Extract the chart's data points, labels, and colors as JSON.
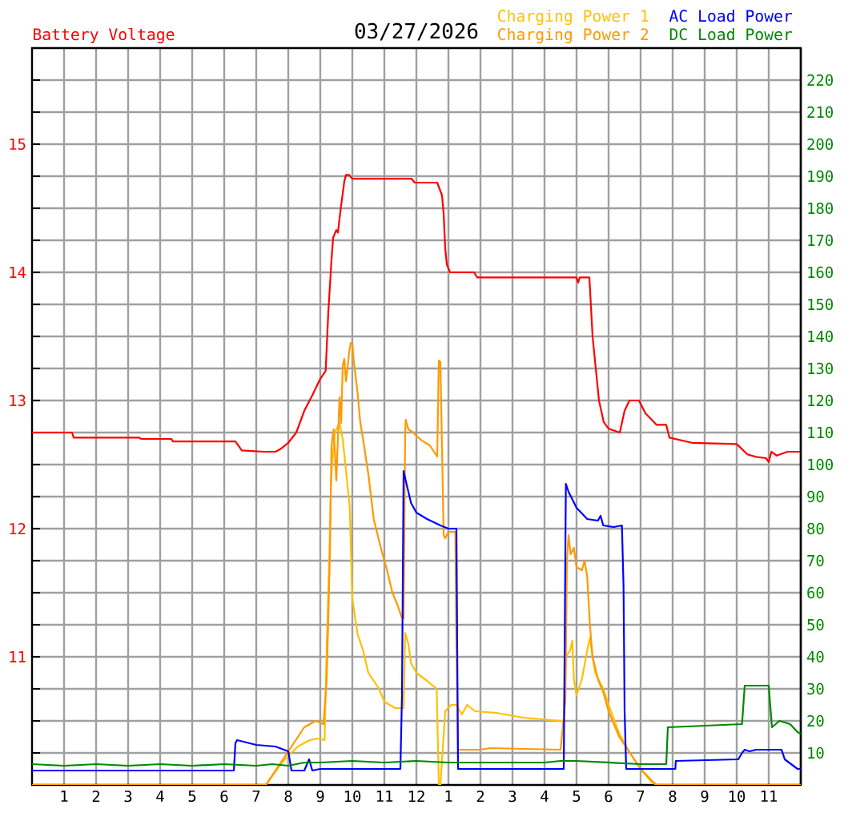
{
  "chart_data": {
    "type": "line",
    "title": "03/27/2026",
    "xlim": [
      "2026-03-27T00:00",
      "2026-03-28T00:00"
    ],
    "xticks": [
      {
        "value": "2026-03-27T01:00",
        "label": "1"
      },
      {
        "value": "2026-03-27T02:00",
        "label": "2"
      },
      {
        "value": "2026-03-27T03:00",
        "label": "3"
      },
      {
        "value": "2026-03-27T04:00",
        "label": "4"
      },
      {
        "value": "2026-03-27T05:00",
        "label": "5"
      },
      {
        "value": "2026-03-27T06:00",
        "label": "6"
      },
      {
        "value": "2026-03-27T07:00",
        "label": "7"
      },
      {
        "value": "2026-03-27T08:00",
        "label": "8"
      },
      {
        "value": "2026-03-27T09:00",
        "label": "9"
      },
      {
        "value": "2026-03-27T10:00",
        "label": "10"
      },
      {
        "value": "2026-03-27T11:00",
        "label": "11"
      },
      {
        "value": "2026-03-27T12:00",
        "label": "12"
      },
      {
        "value": "2026-03-27T13:00",
        "label": "1"
      },
      {
        "value": "2026-03-27T14:00",
        "label": "2"
      },
      {
        "value": "2026-03-27T15:00",
        "label": "3"
      },
      {
        "value": "2026-03-27T16:00",
        "label": "4"
      },
      {
        "value": "2026-03-27T17:00",
        "label": "5"
      },
      {
        "value": "2026-03-27T18:00",
        "label": "6"
      },
      {
        "value": "2026-03-27T19:00",
        "label": "7"
      },
      {
        "value": "2026-03-27T20:00",
        "label": "8"
      },
      {
        "value": "2026-03-27T21:00",
        "label": "9"
      },
      {
        "value": "2026-03-27T22:00",
        "label": "10"
      },
      {
        "value": "2026-03-27T23:00",
        "label": "11"
      }
    ],
    "ylim": [
      10,
      15.75
    ],
    "yticks": [
      {
        "value": 10.25,
        "label": null
      },
      {
        "value": 10.5,
        "label": null
      },
      {
        "value": 10.75,
        "label": null
      },
      11,
      {
        "value": 11.25,
        "label": null
      },
      {
        "value": 11.5,
        "label": null
      },
      {
        "value": 11.75,
        "label": null
      },
      12,
      {
        "value": 12.25,
        "label": null
      },
      {
        "value": 12.5,
        "label": null
      },
      {
        "value": 12.75,
        "label": null
      },
      13,
      {
        "value": 13.25,
        "label": null
      },
      {
        "value": 13.5,
        "label": null
      },
      {
        "value": 13.75,
        "label": null
      },
      14,
      {
        "value": 14.25,
        "label": null
      },
      {
        "value": 14.5,
        "label": null
      },
      {
        "value": 14.75,
        "label": null
      },
      15,
      {
        "value": 15.25,
        "label": null
      },
      {
        "value": 15.5,
        "label": null
      }
    ],
    "y2lim": [
      0,
      230
    ],
    "y2ticks": [
      10,
      20,
      30,
      40,
      50,
      60,
      70,
      80,
      90,
      100,
      110,
      120,
      130,
      140,
      150,
      160,
      170,
      180,
      190,
      200,
      210,
      220
    ],
    "grid": true,
    "legend": "top",
    "series": [
      {
        "name": "Battery Voltage",
        "color": "#ff0000",
        "axis": "y",
        "x": [
          "2026-03-27T00:00",
          "2026-03-27T01:15",
          "2026-03-27T01:18",
          "2026-03-27T03:21",
          "2026-03-27T03:24",
          "2026-03-27T04:21",
          "2026-03-27T04:24",
          "2026-03-27T06:21",
          "2026-03-27T06:33",
          "2026-03-27T07:15",
          "2026-03-27T07:36",
          "2026-03-27T07:45",
          "2026-03-27T08:00",
          "2026-03-27T08:15",
          "2026-03-27T08:30",
          "2026-03-27T08:45",
          "2026-03-27T09:00",
          "2026-03-27T09:10",
          "2026-03-27T09:15",
          "2026-03-27T09:21",
          "2026-03-27T09:24",
          "2026-03-27T09:30",
          "2026-03-27T09:33",
          "2026-03-27T09:36",
          "2026-03-27T09:39",
          "2026-03-27T09:45",
          "2026-03-27T09:48",
          "2026-03-27T09:54",
          "2026-03-27T10:00",
          "2026-03-27T11:51",
          "2026-03-27T11:57",
          "2026-03-27T12:39",
          "2026-03-27T12:48",
          "2026-03-27T12:51",
          "2026-03-27T12:54",
          "2026-03-27T12:57",
          "2026-03-27T13:03",
          "2026-03-27T13:48",
          "2026-03-27T13:54",
          "2026-03-27T17:00",
          "2026-03-27T17:03",
          "2026-03-27T17:06",
          "2026-03-27T17:24",
          "2026-03-27T17:30",
          "2026-03-27T17:36",
          "2026-03-27T17:42",
          "2026-03-27T17:51",
          "2026-03-27T18:00",
          "2026-03-27T18:21",
          "2026-03-27T18:30",
          "2026-03-27T18:39",
          "2026-03-27T18:57",
          "2026-03-27T19:09",
          "2026-03-27T19:30",
          "2026-03-27T19:48",
          "2026-03-27T19:54",
          "2026-03-27T20:36",
          "2026-03-27T22:00",
          "2026-03-27T22:20",
          "2026-03-27T22:36",
          "2026-03-27T22:55",
          "2026-03-27T23:00",
          "2026-03-27T23:05",
          "2026-03-27T23:15",
          "2026-03-27T23:35",
          "2026-03-28T00:00"
        ],
        "values": [
          12.75,
          12.75,
          12.71,
          12.71,
          12.7,
          12.7,
          12.68,
          12.68,
          12.61,
          12.6,
          12.6,
          12.62,
          12.67,
          12.75,
          12.92,
          13.04,
          13.17,
          13.23,
          13.69,
          14.1,
          14.27,
          14.33,
          14.31,
          14.42,
          14.52,
          14.71,
          14.76,
          14.76,
          14.73,
          14.73,
          14.7,
          14.7,
          14.6,
          14.46,
          14.19,
          14.06,
          14,
          14,
          13.96,
          13.96,
          13.92,
          13.96,
          13.96,
          13.5,
          13.25,
          13,
          12.83,
          12.78,
          12.75,
          12.92,
          13,
          13,
          12.9,
          12.81,
          12.81,
          12.71,
          12.67,
          12.66,
          12.58,
          12.56,
          12.55,
          12.52,
          12.6,
          12.57,
          12.6,
          12.6
        ]
      },
      {
        "name": "Charging Power 1",
        "color": "#ffc000",
        "axis": "y2",
        "x": [
          "2026-03-27T00:00",
          "2026-03-27T07:18",
          "2026-03-27T07:48",
          "2026-03-27T08:18",
          "2026-03-27T08:40",
          "2026-03-27T08:54",
          "2026-03-27T09:08",
          "2026-03-27T09:12",
          "2026-03-27T09:17",
          "2026-03-27T09:20",
          "2026-03-27T09:27",
          "2026-03-27T09:36",
          "2026-03-27T09:42",
          "2026-03-27T09:55",
          "2026-03-27T10:00",
          "2026-03-27T10:10",
          "2026-03-27T10:20",
          "2026-03-27T10:30",
          "2026-03-27T10:50",
          "2026-03-27T11:00",
          "2026-03-27T11:10",
          "2026-03-27T11:20",
          "2026-03-27T11:30",
          "2026-03-27T11:36",
          "2026-03-27T11:39",
          "2026-03-27T11:45",
          "2026-03-27T11:50",
          "2026-03-27T12:00",
          "2026-03-27T12:20",
          "2026-03-27T12:38",
          "2026-03-27T12:42",
          "2026-03-27T12:45",
          "2026-03-27T12:54",
          "2026-03-27T13:05",
          "2026-03-27T13:15",
          "2026-03-27T13:25",
          "2026-03-27T13:35",
          "2026-03-27T13:50",
          "2026-03-27T14:30",
          "2026-03-27T15:20",
          "2026-03-27T16:30",
          "2026-03-27T16:36",
          "2026-03-27T16:40",
          "2026-03-27T16:48",
          "2026-03-27T16:52",
          "2026-03-27T16:55",
          "2026-03-27T17:00",
          "2026-03-27T17:10",
          "2026-03-27T17:20",
          "2026-03-27T17:25",
          "2026-03-27T17:30",
          "2026-03-27T17:35",
          "2026-03-27T17:50",
          "2026-03-27T18:00",
          "2026-03-27T18:20",
          "2026-03-27T18:40",
          "2026-03-27T19:00",
          "2026-03-27T19:20",
          "2026-03-27T19:30",
          "2026-03-28T00:00"
        ],
        "values": [
          0,
          0,
          7,
          12,
          14,
          14.5,
          14,
          43,
          72,
          95,
          110,
          113,
          108,
          87,
          58,
          47,
          42,
          35,
          30,
          26,
          25,
          24,
          24,
          24,
          47.5,
          44,
          38,
          35,
          32.5,
          30,
          0,
          0,
          23,
          25,
          25,
          22,
          25,
          23,
          22.5,
          21,
          20,
          20,
          40,
          42,
          45,
          33,
          28,
          33,
          42,
          46,
          40,
          35,
          30,
          25,
          16,
          10,
          5,
          1,
          0,
          0
        ]
      },
      {
        "name": "Charging Power 2",
        "color": "#ff9900",
        "axis": "y2",
        "x": [
          "2026-03-27T00:00",
          "2026-03-27T07:18",
          "2026-03-27T07:30",
          "2026-03-27T08:06",
          "2026-03-27T08:30",
          "2026-03-27T08:51",
          "2026-03-27T09:06",
          "2026-03-27T09:12",
          "2026-03-27T09:18",
          "2026-03-27T09:21",
          "2026-03-27T09:25",
          "2026-03-27T09:30",
          "2026-03-27T09:36",
          "2026-03-27T09:39",
          "2026-03-27T09:42",
          "2026-03-27T09:45",
          "2026-03-27T09:48",
          "2026-03-27T09:51",
          "2026-03-27T09:54",
          "2026-03-27T09:57",
          "2026-03-27T10:00",
          "2026-03-27T10:03",
          "2026-03-27T10:10",
          "2026-03-27T10:15",
          "2026-03-27T10:20",
          "2026-03-27T10:30",
          "2026-03-27T10:40",
          "2026-03-27T10:55",
          "2026-03-27T11:05",
          "2026-03-27T11:15",
          "2026-03-27T11:25",
          "2026-03-27T11:32",
          "2026-03-27T11:36",
          "2026-03-27T11:39",
          "2026-03-27T11:40",
          "2026-03-27T11:45",
          "2026-03-27T11:54",
          "2026-03-27T12:00",
          "2026-03-27T12:10",
          "2026-03-27T12:25",
          "2026-03-27T12:39",
          "2026-03-27T12:42",
          "2026-03-27T12:45",
          "2026-03-27T12:51",
          "2026-03-27T12:54",
          "2026-03-27T13:00",
          "2026-03-27T13:13",
          "2026-03-27T13:15",
          "2026-03-27T13:18",
          "2026-03-27T14:00",
          "2026-03-27T14:18",
          "2026-03-27T16:30",
          "2026-03-27T16:39",
          "2026-03-27T16:42",
          "2026-03-27T16:45",
          "2026-03-27T16:49",
          "2026-03-27T16:55",
          "2026-03-27T17:00",
          "2026-03-27T17:10",
          "2026-03-27T17:15",
          "2026-03-27T17:20",
          "2026-03-27T17:25",
          "2026-03-27T17:30",
          "2026-03-27T17:40",
          "2026-03-27T17:50",
          "2026-03-27T18:00",
          "2026-03-27T18:20",
          "2026-03-27T18:40",
          "2026-03-27T19:00",
          "2026-03-27T19:20",
          "2026-03-27T19:30",
          "2026-03-28T00:00"
        ],
        "values": [
          0,
          0,
          3,
          12,
          18,
          20,
          19,
          33,
          72,
          106,
          111,
          95,
          121,
          113,
          131,
          133,
          126,
          130,
          135,
          138,
          137.5,
          132,
          122,
          113,
          108,
          97,
          83,
          73,
          67,
          60,
          56,
          52.5,
          52,
          110,
          114,
          111,
          110,
          109,
          107.5,
          106,
          102.5,
          132.5,
          132,
          78,
          77,
          79,
          79,
          44,
          11,
          11,
          11.5,
          11,
          26,
          70,
          78,
          72,
          74,
          68,
          67,
          70,
          65,
          50,
          40,
          33,
          29,
          23,
          15,
          10,
          5,
          1.5,
          0,
          0
        ]
      },
      {
        "name": "AC Load Power",
        "color": "#0000ff",
        "axis": "y2",
        "x": [
          "2026-03-27T00:00",
          "2026-03-27T06:18",
          "2026-03-27T06:21",
          "2026-03-27T06:24",
          "2026-03-27T07:00",
          "2026-03-27T07:36",
          "2026-03-27T08:00",
          "2026-03-27T08:06",
          "2026-03-27T08:30",
          "2026-03-27T08:39",
          "2026-03-27T08:45",
          "2026-03-27T09:00",
          "2026-03-27T11:30",
          "2026-03-27T11:33",
          "2026-03-27T11:36",
          "2026-03-27T11:40",
          "2026-03-27T11:50",
          "2026-03-27T12:00",
          "2026-03-27T12:20",
          "2026-03-27T12:45",
          "2026-03-27T13:00",
          "2026-03-27T13:15",
          "2026-03-27T13:18",
          "2026-03-27T16:36",
          "2026-03-27T16:40",
          "2026-03-27T16:45",
          "2026-03-27T17:00",
          "2026-03-27T17:20",
          "2026-03-27T17:40",
          "2026-03-27T17:45",
          "2026-03-27T17:50",
          "2026-03-27T18:10",
          "2026-03-27T18:25",
          "2026-03-27T18:28",
          "2026-03-27T18:30",
          "2026-03-27T18:33",
          "2026-03-27T20:05",
          "2026-03-27T20:06",
          "2026-03-27T22:03",
          "2026-03-27T22:10",
          "2026-03-27T22:15",
          "2026-03-27T22:24",
          "2026-03-27T22:36",
          "2026-03-27T23:24",
          "2026-03-27T23:30",
          "2026-03-27T23:42",
          "2026-03-27T23:54",
          "2026-03-28T00:00"
        ],
        "values": [
          4.5,
          4.5,
          13,
          14,
          12.5,
          12,
          10.5,
          4.5,
          4.5,
          8,
          4.5,
          5,
          5,
          28,
          98,
          95,
          88,
          85,
          83,
          81,
          80,
          80,
          5,
          5,
          94,
          91.5,
          86.5,
          83,
          82.5,
          84,
          81,
          80.5,
          81,
          62,
          23,
          5,
          5,
          7.5,
          8,
          10,
          11,
          10.5,
          11,
          11,
          8,
          6.5,
          5,
          5
        ]
      },
      {
        "name": "DC Load Power",
        "color": "#008800",
        "axis": "y2",
        "x": [
          "2026-03-27T00:00",
          "2026-03-27T01:00",
          "2026-03-27T02:00",
          "2026-03-27T03:00",
          "2026-03-27T04:00",
          "2026-03-27T05:00",
          "2026-03-27T06:00",
          "2026-03-27T07:00",
          "2026-03-27T07:30",
          "2026-03-27T08:00",
          "2026-03-27T08:30",
          "2026-03-27T09:00",
          "2026-03-27T10:00",
          "2026-03-27T11:00",
          "2026-03-27T12:00",
          "2026-03-27T13:00",
          "2026-03-27T14:00",
          "2026-03-27T15:00",
          "2026-03-27T16:00",
          "2026-03-27T16:30",
          "2026-03-27T17:00",
          "2026-03-27T18:00",
          "2026-03-27T19:00",
          "2026-03-27T19:48",
          "2026-03-27T19:51",
          "2026-03-27T21:00",
          "2026-03-27T22:10",
          "2026-03-27T22:15",
          "2026-03-27T23:00",
          "2026-03-27T23:06",
          "2026-03-27T23:20",
          "2026-03-27T23:40",
          "2026-03-27T23:54",
          "2026-03-28T00:00"
        ],
        "values": [
          6.5,
          6,
          6.5,
          6,
          6.5,
          6,
          6.5,
          6,
          6.5,
          6,
          7,
          7,
          7.5,
          7,
          7.5,
          7,
          7,
          7,
          7,
          7.5,
          7.5,
          7,
          6.5,
          6.5,
          18,
          18.5,
          19,
          31,
          31,
          18,
          20,
          19,
          16.5,
          16
        ]
      }
    ]
  }
}
